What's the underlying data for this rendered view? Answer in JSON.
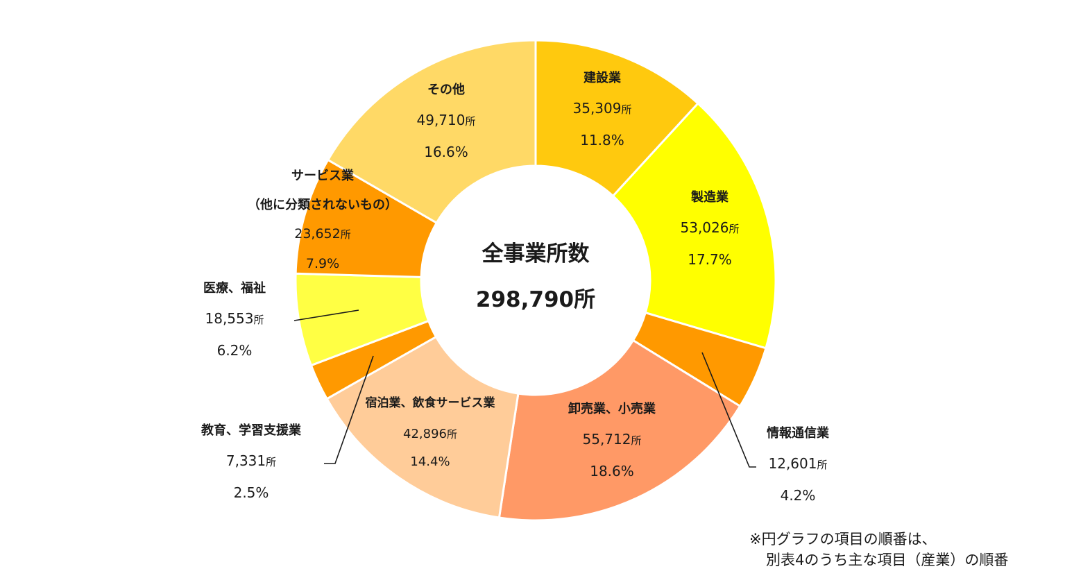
{
  "chart_data": {
    "type": "pie",
    "subtype": "donut",
    "title": "全事業所数",
    "total_label": "298,790所",
    "total": 298790,
    "unit": "所",
    "start_angle": "12 o'clock",
    "direction": "clockwise",
    "categories": [
      "建設業",
      "製造業",
      "情報通信業",
      "卸売業、小売業",
      "宿泊業、飲食サービス業",
      "教育、学習支援業",
      "医療、福祉",
      "サービス業（他に分類されないもの）",
      "その他"
    ],
    "values": [
      35309,
      53026,
      12601,
      55712,
      42896,
      7331,
      18553,
      23652,
      49710
    ],
    "percents": [
      11.8,
      17.7,
      4.2,
      18.6,
      14.4,
      2.5,
      6.2,
      7.9,
      16.6
    ],
    "colors": [
      "#FFC90E",
      "#FFFF00",
      "#FF9900",
      "#FF9966",
      "#FFCC99",
      "#FF9900",
      "#FFFF44",
      "#FF9900",
      "#FFD966"
    ],
    "note": [
      "※円グラフの項目の順番は、",
      "別表4のうち主な項目（産業）の順番"
    ]
  },
  "center": {
    "title": "全事業所数",
    "value": "298,790所"
  },
  "labels": [
    {
      "name": "建設業",
      "value": "35,309",
      "unit": "所",
      "pct": "11.8%"
    },
    {
      "name": "製造業",
      "value": "53,026",
      "unit": "所",
      "pct": "17.7%"
    },
    {
      "name": "情報通信業",
      "value": "12,601",
      "unit": "所",
      "pct": "4.2%"
    },
    {
      "name": "卸売業、小売業",
      "value": "55,712",
      "unit": "所",
      "pct": "18.6%"
    },
    {
      "name": "宿泊業、飲食サービス業",
      "value": "42,896",
      "unit": "所",
      "pct": "14.4%"
    },
    {
      "name": "教育、学習支援業",
      "value": "7,331",
      "unit": "所",
      "pct": "2.5%"
    },
    {
      "name": "医療、福祉",
      "value": "18,553",
      "unit": "所",
      "pct": "6.2%"
    },
    {
      "name": "サービス業",
      "name2": "（他に分類されないもの）",
      "value": "23,652",
      "unit": "所",
      "pct": "7.9%"
    },
    {
      "name": "その他",
      "value": "49,710",
      "unit": "所",
      "pct": "16.6%"
    }
  ],
  "note": {
    "line1": "※円グラフの項目の順番は、",
    "line2": "別表4のうち主な項目（産業）の順番"
  }
}
